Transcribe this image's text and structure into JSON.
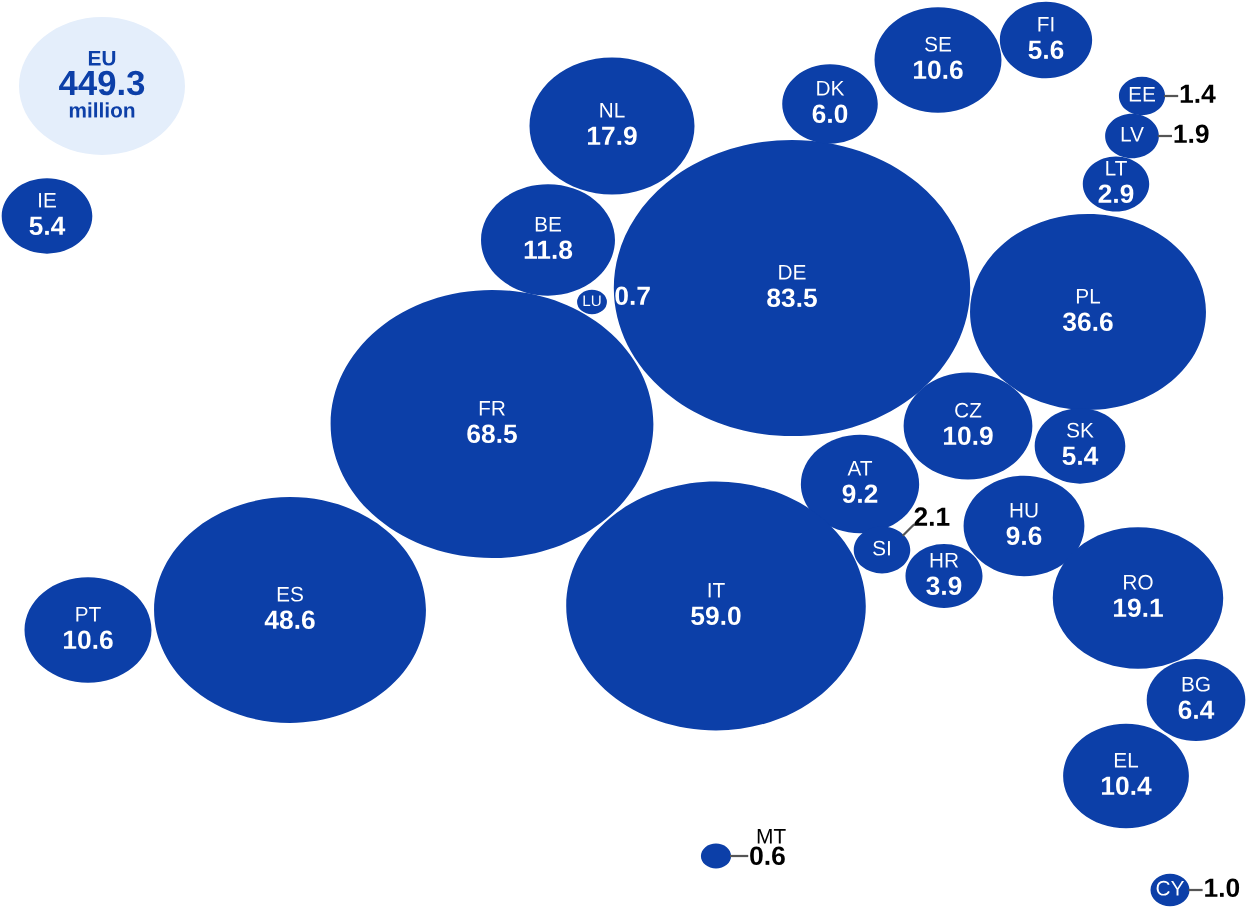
{
  "chart_data": {
    "type": "other",
    "categories": [
      "IE",
      "NL",
      "BE",
      "LU",
      "DE",
      "DK",
      "SE",
      "FI",
      "EE",
      "LV",
      "LT",
      "PL",
      "FR",
      "CZ",
      "SK",
      "AT",
      "SI",
      "HR",
      "HU",
      "IT",
      "ES",
      "PT",
      "RO",
      "BG",
      "EL",
      "MT",
      "CY"
    ],
    "values": [
      5.4,
      17.9,
      11.8,
      0.7,
      83.5,
      6.0,
      10.6,
      5.6,
      1.4,
      1.9,
      2.9,
      36.6,
      68.5,
      10.9,
      5.4,
      9.2,
      2.1,
      3.9,
      9.6,
      59.0,
      48.6,
      10.6,
      19.1,
      6.4,
      10.4,
      0.6,
      1.0
    ],
    "value_labels": [
      "5.4",
      "17.9",
      "11.8",
      "0.7",
      "83.5",
      "6.0",
      "10.6",
      "5.6",
      "1.4",
      "1.9",
      "2.9",
      "36.6",
      "68.5",
      "10.9",
      "5.4",
      "9.2",
      "2.1",
      "3.9",
      "9.6",
      "59.0",
      "48.6",
      "10.6",
      "19.1",
      "6.4",
      "10.4",
      "0.6",
      "1.0"
    ],
    "color": "#0c3fa8",
    "annotations": [
      "EU\n449.3\nmillion"
    ]
  }
}
